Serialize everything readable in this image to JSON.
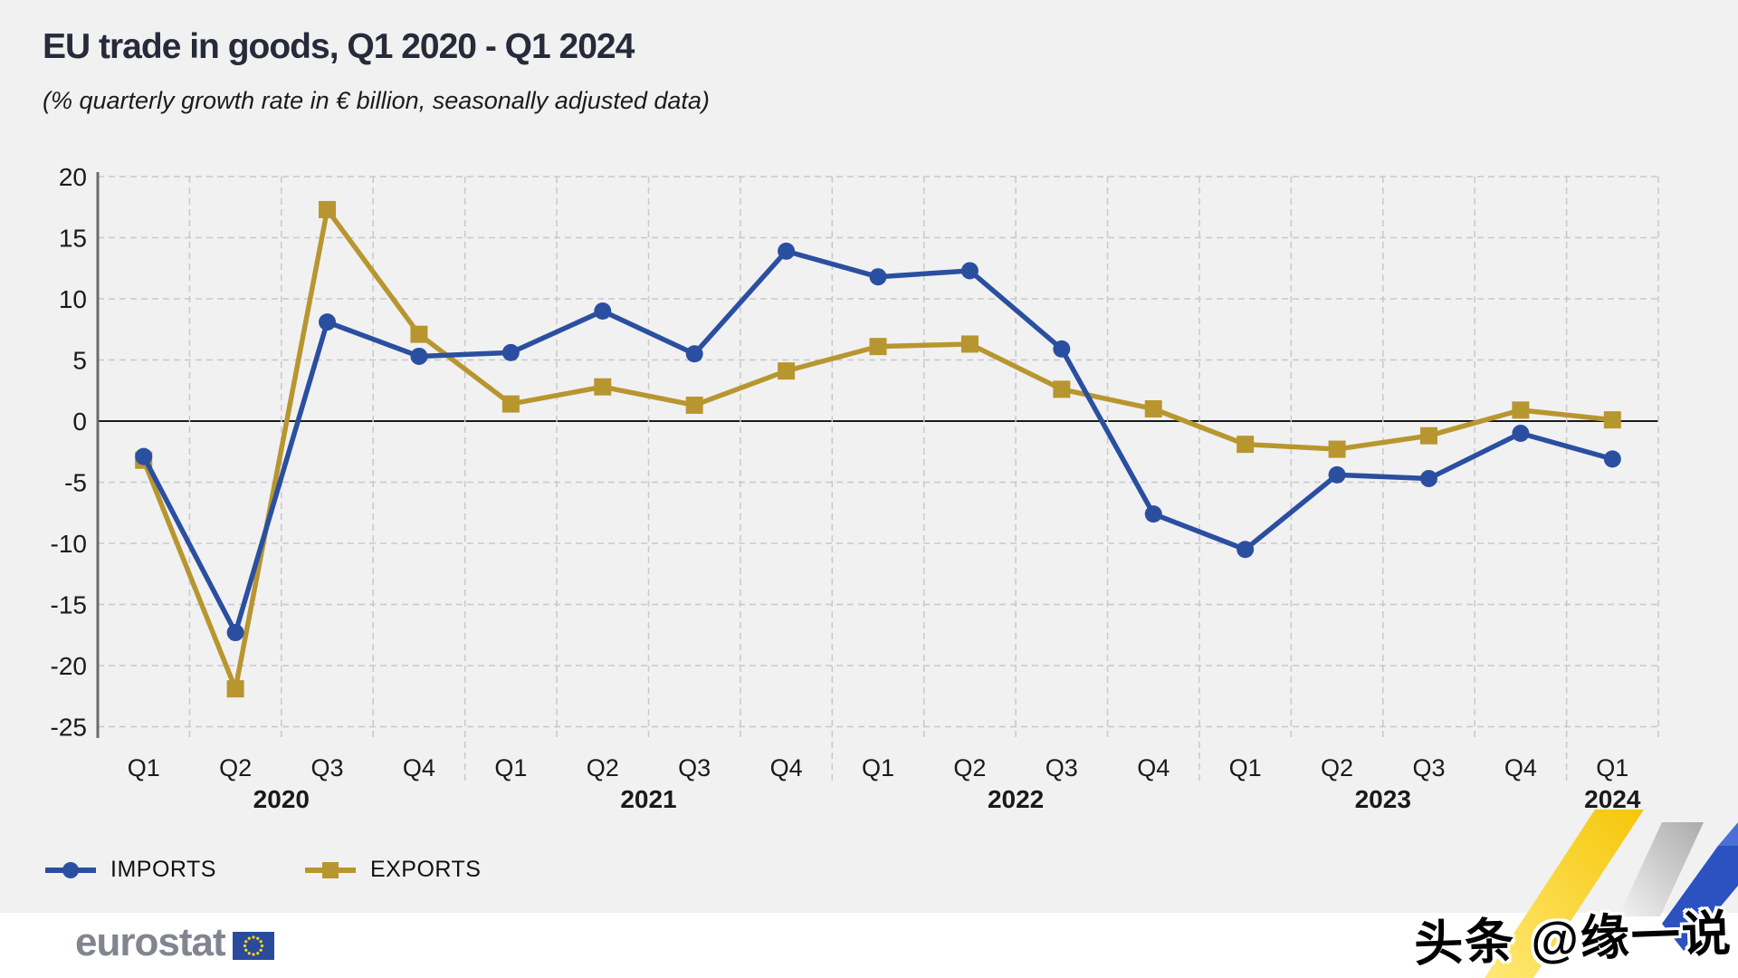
{
  "header": {
    "title": "EU trade in goods, Q1 2020 - Q1 2024",
    "subtitle": "(% quarterly growth rate in € billion, seasonally adjusted data)"
  },
  "legend": {
    "items": [
      {
        "label": "IMPORTS",
        "series": "imports"
      },
      {
        "label": "EXPORTS",
        "series": "exports"
      }
    ],
    "position": "bottom-left"
  },
  "footer": {
    "brand": "eurostat",
    "flag_icon": "eu-flag-icon"
  },
  "watermark": {
    "text": "头条 @缘一说"
  },
  "colors": {
    "imports": "#2b4fa0",
    "exports": "#b8962f",
    "background": "#f1f1f2",
    "gridline": "#c8c8c8",
    "zero_line": "#1a1a1a",
    "axis_line": "#6b6b6b",
    "eu_flag_blue": "#2a4b9b",
    "eu_star_yellow": "#ffd617"
  },
  "chart_data": {
    "type": "line",
    "title": "EU trade in goods, Q1 2020 - Q1 2024",
    "subtitle": "(% quarterly growth rate in € billion, seasonally adjusted data)",
    "xlabel": "",
    "ylabel": "",
    "ylim": [
      -25,
      20
    ],
    "y_ticks": [
      20,
      15,
      10,
      5,
      0,
      -5,
      -10,
      -15,
      -20,
      -25
    ],
    "grid": "dashed horizontal at every 5, dashed vertical at quarter boundaries, solid zero line",
    "legend_position": "bottom-left",
    "x_categories": [
      "Q1",
      "Q2",
      "Q3",
      "Q4",
      "Q1",
      "Q2",
      "Q3",
      "Q4",
      "Q1",
      "Q2",
      "Q3",
      "Q4",
      "Q1",
      "Q2",
      "Q3",
      "Q4",
      "Q1"
    ],
    "year_groups": [
      {
        "label": "2020",
        "quarters": 4
      },
      {
        "label": "2021",
        "quarters": 4
      },
      {
        "label": "2022",
        "quarters": 4
      },
      {
        "label": "2023",
        "quarters": 4
      },
      {
        "label": "2024",
        "quarters": 1
      }
    ],
    "series": [
      {
        "name": "IMPORTS",
        "marker": "circle",
        "color": "#2b4fa0",
        "values": [
          -2.9,
          -17.3,
          8.1,
          5.3,
          5.6,
          9.0,
          5.5,
          13.9,
          11.8,
          12.3,
          5.9,
          -7.6,
          -10.5,
          -4.4,
          -4.7,
          -1.0,
          -3.1
        ]
      },
      {
        "name": "EXPORTS",
        "marker": "square",
        "color": "#b8962f",
        "values": [
          -3.2,
          -21.9,
          17.3,
          7.1,
          1.4,
          2.8,
          1.3,
          4.1,
          6.1,
          6.3,
          2.6,
          1.0,
          -1.9,
          -2.3,
          -1.2,
          0.9,
          0.1
        ]
      }
    ]
  }
}
